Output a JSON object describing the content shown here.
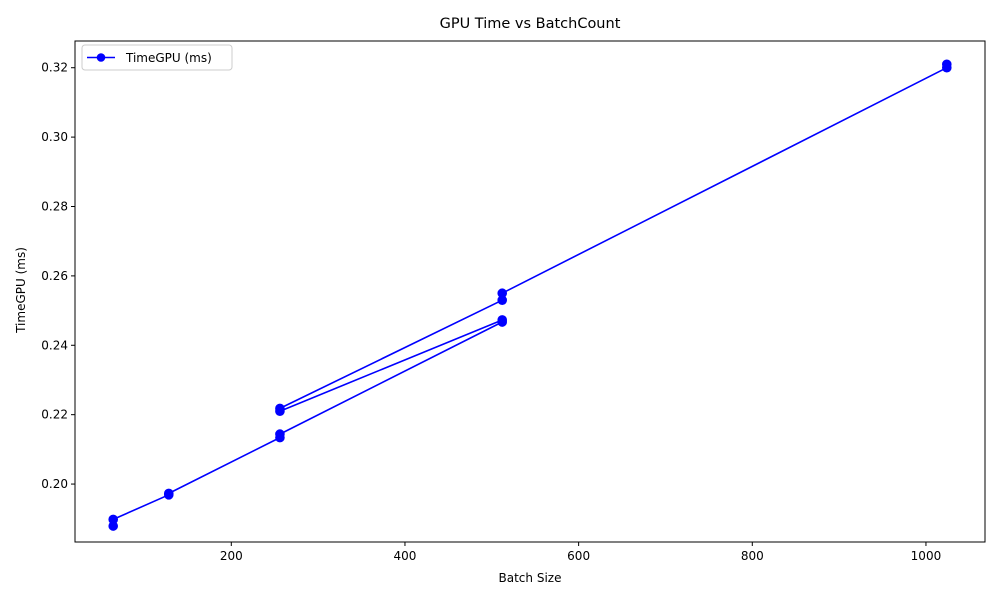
{
  "chart_data": {
    "type": "line",
    "title": "GPU Time vs BatchCount",
    "xlabel": "Batch Size",
    "ylabel": "TimeGPU (ms)",
    "xlim": [
      20,
      1068
    ],
    "ylim": [
      0.1833,
      0.3277
    ],
    "xticks": [
      200,
      400,
      600,
      800,
      1000
    ],
    "yticks": [
      0.2,
      0.22,
      0.24,
      0.26,
      0.28,
      0.3,
      0.32
    ],
    "xtick_labels": [
      "200",
      "400",
      "600",
      "800",
      "1000"
    ],
    "ytick_labels": [
      "0.20",
      "0.22",
      "0.24",
      "0.26",
      "0.28",
      "0.30",
      "0.32"
    ],
    "grid": false,
    "legend_position": "upper-left",
    "series": [
      {
        "name": "TimeGPU (ms)",
        "color": "#0000ff",
        "marker": "circle",
        "x": [
          64,
          64,
          128,
          128,
          256,
          256,
          512,
          512,
          256,
          256,
          512,
          512,
          1024,
          1024
        ],
        "y": [
          0.1879,
          0.1898,
          0.1969,
          0.1973,
          0.2134,
          0.2144,
          0.2467,
          0.2473,
          0.221,
          0.2218,
          0.253,
          0.255,
          0.32,
          0.321
        ]
      }
    ]
  }
}
